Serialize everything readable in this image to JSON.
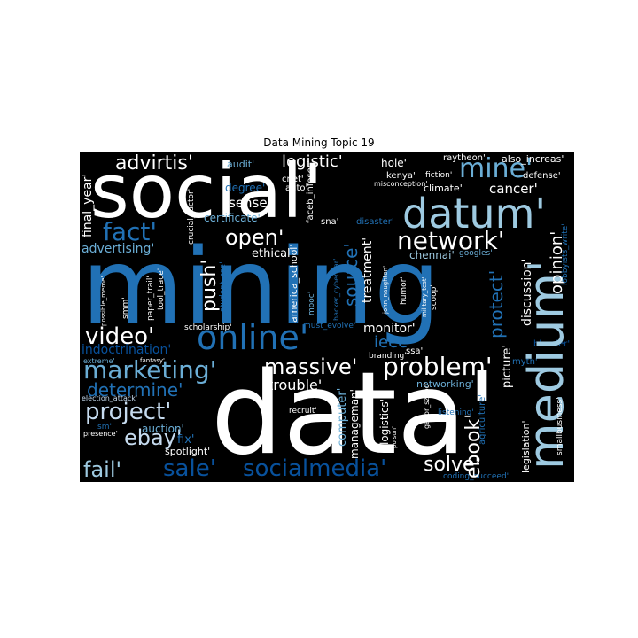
{
  "title": "Data Mining Topic 19",
  "palette": {
    "white": "#ffffff",
    "pale": "#c6dbef",
    "light": "#9ecae1",
    "mid": "#6baed6",
    "blue": "#2171b5",
    "dark": "#08519c",
    "navy": "#08306b"
  },
  "words": {
    "w_data": "data'",
    "w_mining": "mining",
    "w_social": "social'",
    "w_medium": "medium'",
    "w_datum": "datum'",
    "w_online": "online'",
    "w_network": "network'",
    "w_problem": "problem'",
    "w_marketing": "marketing'",
    "w_mine": "mine'",
    "w_fact": "fact'",
    "w_open": "open'",
    "w_massive": "massive'",
    "w_project": "project'",
    "w_video": "video'",
    "w_ebay": "ebay'",
    "w_ebook": "ebook'",
    "w_sale": "sale'",
    "w_socialmedia": "socialmedia'",
    "w_fail": "fail'",
    "w_solve": "solve'",
    "w_advirtis": "advirtis'",
    "w_logistic": "logistic'",
    "w_determine": "determine'",
    "w_push": "push'",
    "w_source": "source'",
    "w_protect": "protect'",
    "w_opinion": "opinion'",
    "w_cancer": "cancer'",
    "w_sense": "sense'",
    "w_advertising": "advertising'",
    "w_ethical": "ethical'",
    "w_trouble": "trouble'",
    "w_ieee": "ieee'",
    "w_monitor": "monitor'",
    "w_treatment": "treatment'",
    "w_discussion": "discussion'",
    "w_picture": "picture'",
    "w_indoctrination": "indoctrination'",
    "w_auction": "auction'",
    "w_networking": "networking'",
    "w_computer": "computer'",
    "w_manageman": "manageman'",
    "w_logistics": "logistics'",
    "w_legislation": "legislation'",
    "w_agriculture": "agriculture'",
    "w_final_year": "final_year'",
    "w_degree": "degree'",
    "w_certificate": "certificate'",
    "w_chennai": "chennai'",
    "w_hole": "hole'",
    "w_raytheon": "raytheon'",
    "w_also_increas": "also_increas'",
    "w_defense": "defense'",
    "w_kenya": "kenya'",
    "w_climate": "climate'",
    "w_fiction": "fiction'",
    "w_misconception": "misconception'",
    "w_cnet": "cnet'",
    "w_auto": "auto'",
    "w_audit": "audit'",
    "w_crucial_factor": "crucial_factor'",
    "w_faceb_infosec": "faceb_infosec'",
    "w_disaster": "disaster'",
    "w_sna": "sna'",
    "w_googles": "googles'",
    "w_lobbyists_write": "lobbyists_write'",
    "w_student_cse": "student_cse'",
    "w_paper_trail": "paper_trail'",
    "w_tool_trace": "tool_trace'",
    "w_america_school": "america_school'",
    "w_mooc": "mooc'",
    "w_hacker_cyberwar": "hacker_cyberwar'",
    "w_john_naughton": "john_naughton'",
    "w_humor": "humor'",
    "w_military_test": "military_test'",
    "w_scoop": "scoop'",
    "w_scholarship": "scholarship'",
    "w_must_evolve": "must_evolve'",
    "w_branding": "branding'",
    "w_ssa": "ssa'",
    "w_myth": "myth'",
    "w_blunder": "blunder'",
    "w_possible_meme": "possible_meme'",
    "w_smm": "smm'",
    "w_extreme": "extreme'",
    "w_fantasy": "fantasy'",
    "w_election_attack": "election_attack'",
    "w_sm": "sm'",
    "w_presence": "presence'",
    "w_fix": "fix'",
    "w_spotlight": "spotlight'",
    "w_recruit": "recruit'",
    "w_visuals_ris": "visuals_ris'",
    "w_listening": "listening'",
    "w_poison": "poison'",
    "w_gabor_szabo": "gabor_szabo'",
    "w_smallbusiness": "smallbusiness'",
    "w_coding_succeed": "coding_succeed'"
  }
}
